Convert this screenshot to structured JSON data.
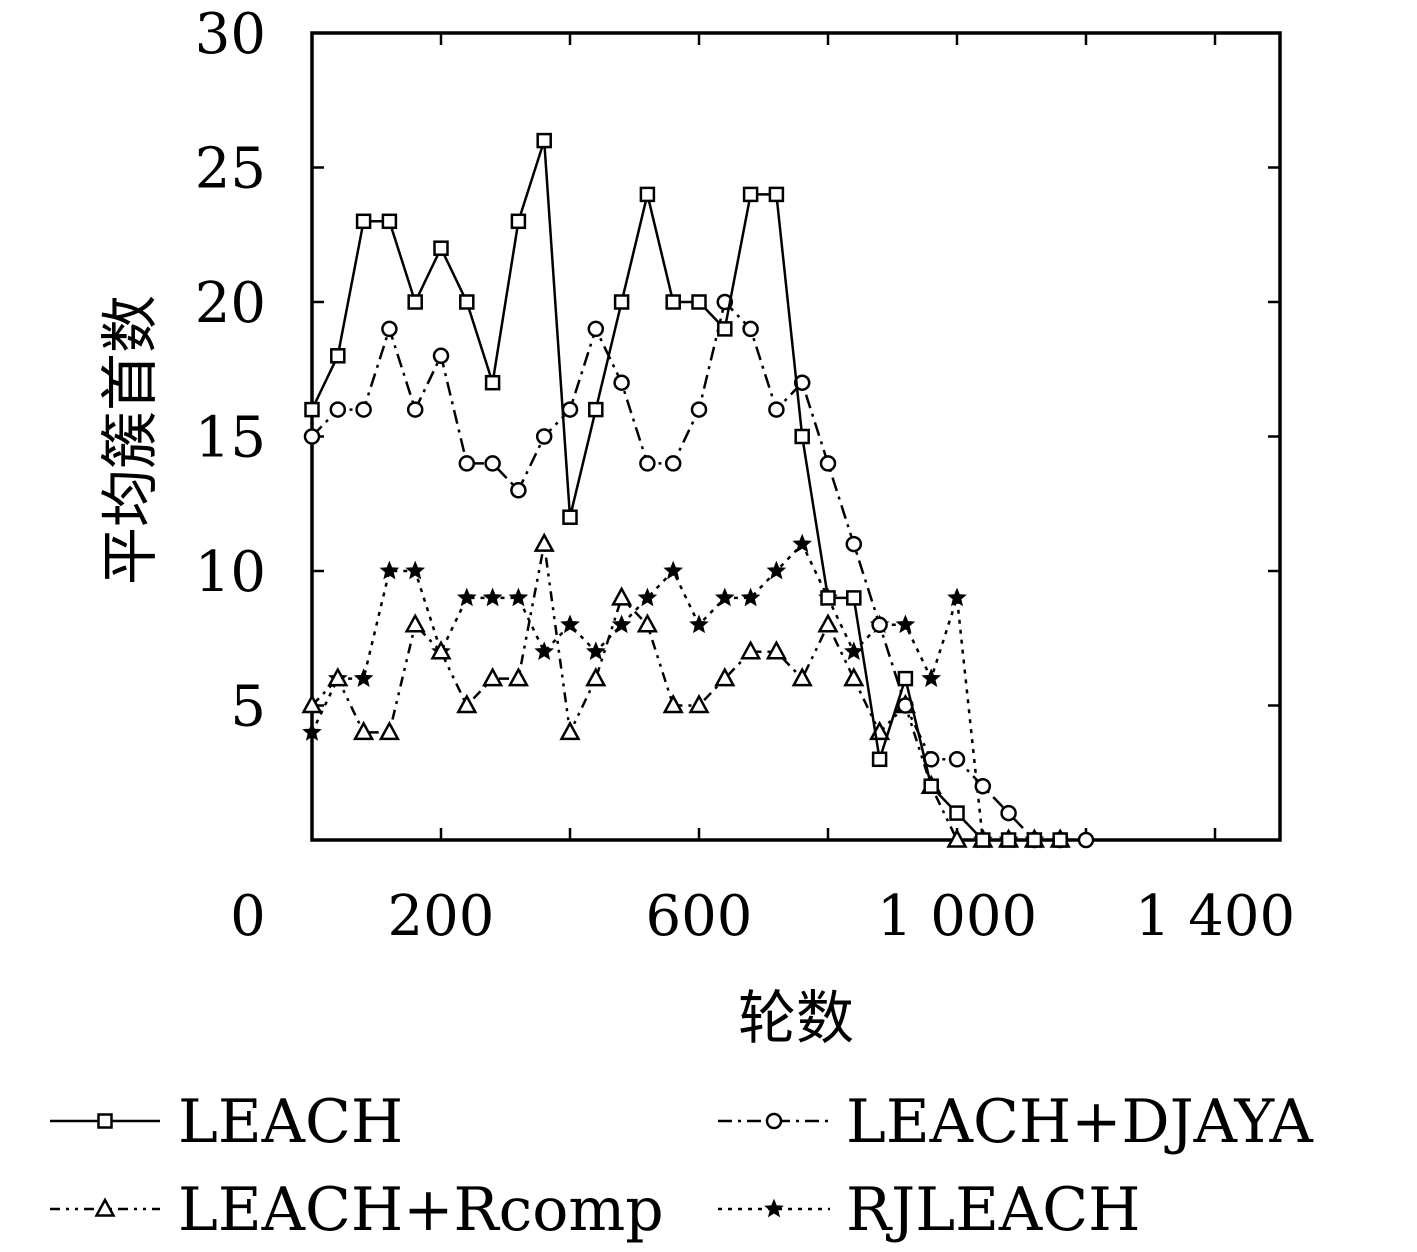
{
  "chart_data": {
    "type": "line",
    "xlabel": "轮数",
    "ylabel": "平均簇首数",
    "xlim": [
      0,
      1500
    ],
    "ylim": [
      0,
      30
    ],
    "x_ticks": [
      0,
      200,
      600,
      1000,
      1400
    ],
    "x_tick_labels": [
      "0",
      "200",
      "600",
      "1 000",
      "1 400"
    ],
    "x_minor_ticks": [
      400,
      800,
      1200
    ],
    "y_ticks": [
      5,
      10,
      15,
      20,
      25,
      30
    ],
    "y_tick_labels": [
      "5",
      "10",
      "15",
      "20",
      "25",
      "30"
    ],
    "x": [
      0,
      40,
      80,
      120,
      160,
      200,
      240,
      280,
      320,
      360,
      400,
      440,
      480,
      520,
      560,
      600,
      640,
      680,
      720,
      760,
      800,
      840,
      880,
      920,
      960,
      1000,
      1040,
      1080,
      1120,
      1160,
      1200
    ],
    "grid": false,
    "legend_position": "bottom",
    "series": [
      {
        "name": "LEACH",
        "line": "solid",
        "marker": "square",
        "values": [
          16,
          18,
          23,
          23,
          20,
          22,
          20,
          17,
          23,
          26,
          12,
          16,
          20,
          24,
          20,
          20,
          19,
          24,
          24,
          15,
          9,
          9,
          3,
          6,
          2,
          1,
          0,
          0,
          0,
          0,
          null
        ]
      },
      {
        "name": "LEACH+DJAYA",
        "line": "dashdot",
        "marker": "circle",
        "values": [
          15,
          16,
          16,
          19,
          16,
          18,
          14,
          14,
          13,
          15,
          16,
          19,
          17,
          14,
          14,
          16,
          20,
          19,
          16,
          17,
          14,
          11,
          8,
          5,
          3,
          3,
          2,
          1,
          0,
          0,
          0
        ]
      },
      {
        "name": "LEACH+Rcomp",
        "line": "dashdotdot",
        "marker": "triangle",
        "values": [
          5,
          6,
          4,
          4,
          8,
          7,
          5,
          6,
          6,
          11,
          4,
          6,
          9,
          8,
          5,
          5,
          6,
          7,
          7,
          6,
          8,
          6,
          4,
          5,
          2,
          0,
          0,
          0,
          0,
          0,
          null
        ]
      },
      {
        "name": "RJLEACH",
        "line": "dotted",
        "marker": "star",
        "values": [
          4,
          6,
          6,
          10,
          10,
          7,
          9,
          9,
          9,
          7,
          8,
          7,
          8,
          9,
          10,
          8,
          9,
          9,
          10,
          11,
          9,
          7,
          8,
          8,
          6,
          9,
          0,
          0,
          0,
          null,
          null
        ]
      }
    ]
  }
}
